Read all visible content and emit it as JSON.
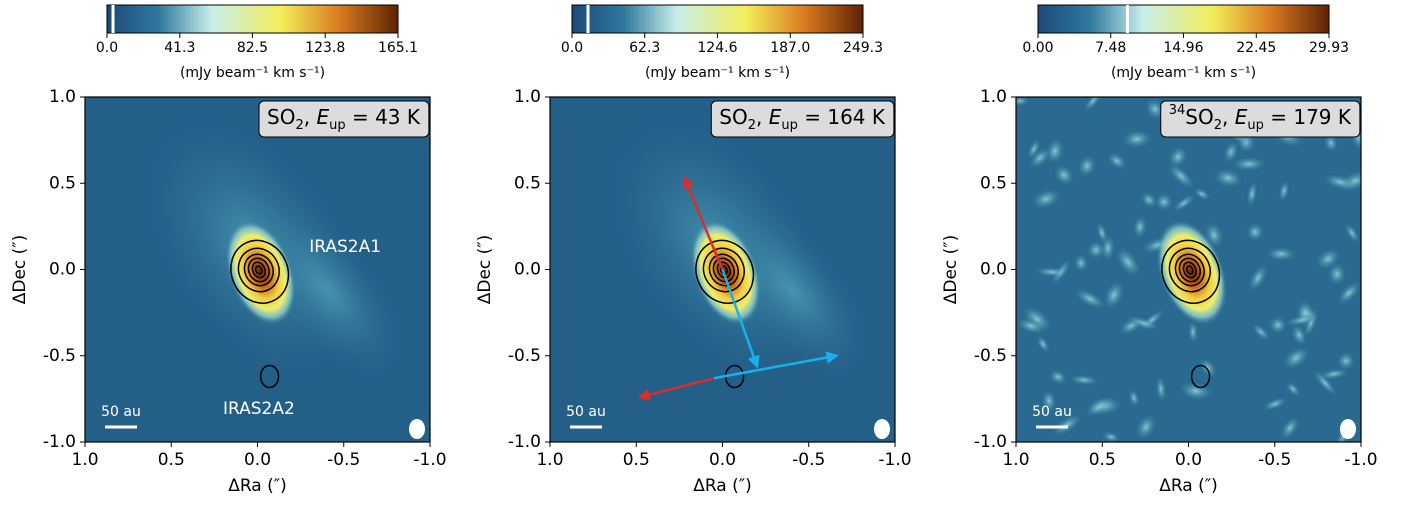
{
  "chart_data": [
    {
      "type": "image",
      "label_parts": [
        "SO",
        "2",
        ", ",
        "E",
        "up",
        " = 43 K"
      ],
      "xlabel": "ΔRa (″)",
      "ylabel": "ΔDec (″)",
      "xlim": [
        1.0,
        -1.0
      ],
      "ylim": [
        -1.0,
        1.0
      ],
      "xticks": [
        {
          "value": 1.0,
          "label": "1.0"
        },
        {
          "value": 0.5,
          "label": "0.5"
        },
        {
          "value": 0.0,
          "label": "0.0"
        },
        {
          "value": -0.5,
          "label": "-0.5"
        },
        {
          "value": -1.0,
          "label": "-1.0"
        }
      ],
      "yticks": [
        {
          "value": -1.0,
          "label": "-1.0"
        },
        {
          "value": -0.5,
          "label": "-0.5"
        },
        {
          "value": 0.0,
          "label": "0.0"
        },
        {
          "value": 0.5,
          "label": "0.5"
        },
        {
          "value": 1.0,
          "label": "1.0"
        }
      ],
      "clim": [
        0,
        165.1
      ],
      "cticks": [
        {
          "value": 0,
          "label": "0.0"
        },
        41.3,
        82.5,
        123.8,
        165.1
      ],
      "colorbar_label": "(mJy beam⁻¹ km s⁻¹)",
      "contour_start": 3.4,
      "scale_bar": "50 au",
      "annotations": [
        "IRAS2A1",
        "IRAS2A2"
      ]
    },
    {
      "type": "image",
      "label_parts": [
        "SO",
        "2",
        ", ",
        "E",
        "up",
        " = 164 K"
      ],
      "xlabel": "ΔRa (″)",
      "ylabel": "ΔDec (″)",
      "xlim": [
        1.0,
        -1.0
      ],
      "ylim": [
        -1.0,
        1.0
      ],
      "xticks": [
        {
          "value": 1.0,
          "label": "1.0"
        },
        {
          "value": 0.5,
          "label": "0.5"
        },
        {
          "value": 0.0,
          "label": "0.0"
        },
        {
          "value": -0.5,
          "label": "-0.5"
        },
        {
          "value": -1.0,
          "label": "-1.0"
        }
      ],
      "yticks": [
        {
          "value": -1.0,
          "label": "-1.0"
        },
        {
          "value": -0.5,
          "label": "-0.5"
        },
        {
          "value": 0.0,
          "label": "0.0"
        },
        {
          "value": 0.5,
          "label": "0.5"
        },
        {
          "value": 1.0,
          "label": "1.0"
        }
      ],
      "clim": [
        0,
        249.3
      ],
      "cticks": [
        {
          "value": 0,
          "label": "0.0"
        },
        62.3,
        124.6,
        {
          "value": 187,
          "label": "187.0"
        },
        249.3
      ],
      "colorbar_label": "(mJy beam⁻¹ km s⁻¹)",
      "contour_start": 13.7,
      "scale_bar": "50 au"
    },
    {
      "type": "image",
      "label_parts": [
        "34",
        "SO",
        "2",
        ", ",
        "E",
        "up",
        " = 179 K"
      ],
      "xlabel": "ΔRa (″)",
      "ylabel": "ΔDec (″)",
      "xlim": [
        1.0,
        -1.0
      ],
      "ylim": [
        -1.0,
        1.0
      ],
      "xticks": [
        {
          "value": 1.0,
          "label": "1.0"
        },
        {
          "value": 0.5,
          "label": "0.5"
        },
        {
          "value": 0.0,
          "label": "0.0"
        },
        {
          "value": -0.5,
          "label": "-0.5"
        },
        {
          "value": -1.0,
          "label": "-1.0"
        }
      ],
      "yticks": [
        {
          "value": -1.0,
          "label": "-1.0"
        },
        {
          "value": -0.5,
          "label": "-0.5"
        },
        {
          "value": 0.0,
          "label": "0.0"
        },
        {
          "value": 0.5,
          "label": "0.5"
        },
        {
          "value": 1.0,
          "label": "1.0"
        }
      ],
      "clim": [
        0,
        29.93
      ],
      "cticks": [
        {
          "value": 0,
          "label": "0.00"
        },
        7.48,
        14.96,
        22.45,
        29.93
      ],
      "colorbar_label": "(mJy beam⁻¹ km s⁻¹)",
      "contour_start": 9.2,
      "scale_bar": "50 au"
    }
  ]
}
